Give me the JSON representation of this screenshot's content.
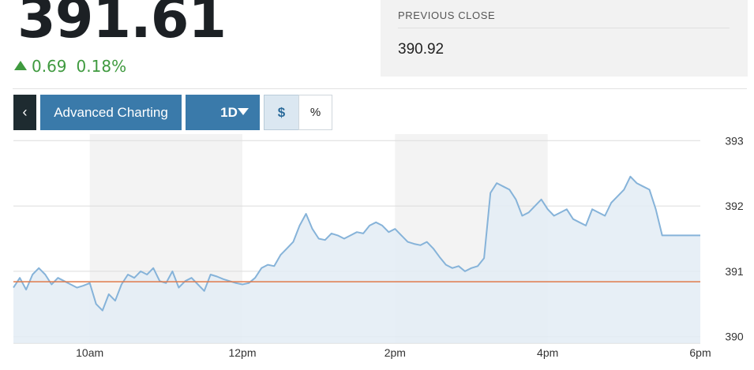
{
  "quote": {
    "price": "391.61",
    "change": "0.69",
    "change_pct": "0.18%",
    "direction_icon": "triangle-up-icon",
    "change_color": "#3f9a3f"
  },
  "previous_close": {
    "label": "PREVIOUS CLOSE",
    "value": "390.92"
  },
  "toolbar": {
    "back_label": "‹",
    "advanced_label": "Advanced Charting",
    "period_label": "1D",
    "dollar_label": "$",
    "percent_label": "%"
  },
  "chart_data": {
    "type": "area",
    "x_unit": "time of day",
    "x_ticks": [
      "10am",
      "12pm",
      "2pm",
      "4pm",
      "6pm"
    ],
    "y_ticks": [
      "393",
      "392",
      "391",
      "390"
    ],
    "ylim": [
      389.9,
      393.1
    ],
    "xlim": [
      "9:00",
      "18:00"
    ],
    "grid": true,
    "line_color": "#86b3d9",
    "fill_color": "#e3ecf5",
    "reference_line": {
      "value": 390.84,
      "color": "#e07a4a"
    },
    "series": [
      {
        "x": [
          "9:00",
          "9:05",
          "9:10",
          "9:15",
          "9:20",
          "9:25",
          "9:30",
          "9:35",
          "9:40",
          "9:45",
          "9:50",
          "9:55",
          "10:00",
          "10:05",
          "10:10",
          "10:15",
          "10:20",
          "10:25",
          "10:30",
          "10:35",
          "10:40",
          "10:45",
          "10:50",
          "10:55",
          "11:00",
          "11:05",
          "11:10",
          "11:15",
          "11:20",
          "11:25",
          "11:30",
          "11:35",
          "11:40",
          "11:45",
          "11:50",
          "11:55",
          "12:00",
          "12:05",
          "12:10",
          "12:15",
          "12:20",
          "12:25",
          "12:30",
          "12:35",
          "12:40",
          "12:45",
          "12:50",
          "12:55",
          "13:00",
          "13:05",
          "13:10",
          "13:15",
          "13:20",
          "13:25",
          "13:30",
          "13:35",
          "13:40",
          "13:45",
          "13:50",
          "13:55",
          "14:00",
          "14:05",
          "14:10",
          "14:15",
          "14:20",
          "14:25",
          "14:30",
          "14:35",
          "14:40",
          "14:45",
          "14:50",
          "14:55",
          "15:00",
          "15:05",
          "15:10",
          "15:15",
          "15:20",
          "15:25",
          "15:30",
          "15:35",
          "15:40",
          "15:45",
          "15:50",
          "15:55",
          "16:00",
          "16:05",
          "16:10",
          "16:15",
          "16:20",
          "16:25",
          "16:30",
          "16:35",
          "16:40",
          "16:45",
          "16:50",
          "16:55",
          "17:00",
          "17:05",
          "17:10",
          "17:15",
          "17:20",
          "17:25",
          "17:30",
          "17:35",
          "17:40",
          "17:45",
          "17:50",
          "17:55",
          "18:00"
        ],
        "y": [
          390.75,
          390.9,
          390.72,
          390.95,
          391.05,
          390.95,
          390.8,
          390.9,
          390.85,
          390.8,
          390.75,
          390.78,
          390.82,
          390.5,
          390.4,
          390.65,
          390.55,
          390.8,
          390.95,
          390.9,
          391.0,
          390.95,
          391.05,
          390.85,
          390.82,
          391.0,
          390.75,
          390.85,
          390.9,
          390.8,
          390.7,
          390.95,
          390.92,
          390.88,
          390.85,
          390.82,
          390.8,
          390.82,
          390.9,
          391.05,
          391.1,
          391.08,
          391.25,
          391.35,
          391.45,
          391.7,
          391.88,
          391.65,
          391.5,
          391.48,
          391.58,
          391.55,
          391.5,
          391.55,
          391.6,
          391.58,
          391.7,
          391.75,
          391.7,
          391.6,
          391.65,
          391.55,
          391.45,
          391.42,
          391.4,
          391.45,
          391.35,
          391.22,
          391.1,
          391.05,
          391.08,
          391.0,
          391.05,
          391.08,
          391.2,
          392.2,
          392.35,
          392.3,
          392.25,
          392.1,
          391.85,
          391.9,
          392.0,
          392.1,
          391.95,
          391.85,
          391.9,
          391.95,
          391.8,
          391.75,
          391.7,
          391.95,
          391.9,
          391.85,
          392.05,
          392.15,
          392.25,
          392.45,
          392.35,
          392.3,
          392.25,
          391.95,
          391.55,
          391.55,
          391.55,
          391.55,
          391.55,
          391.55,
          391.55
        ]
      }
    ]
  }
}
